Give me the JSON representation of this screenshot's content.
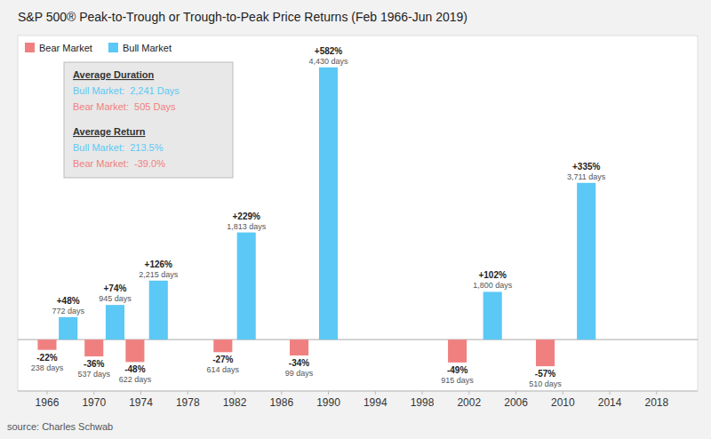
{
  "chart_data": {
    "type": "bar",
    "title": "S&P 500® Peak-to-Trough or Trough-to-Peak Price Returns (Feb 1966-Jun 2019)",
    "source": "source: Charles Schwab",
    "x": [
      1966.0,
      1967.8,
      1970.0,
      1971.8,
      1973.5,
      1975.5,
      1981.0,
      1983.0,
      1987.5,
      1990.0,
      2001.0,
      2004.0,
      2008.5,
      2012.0
    ],
    "series": [
      {
        "name": "Bear Market",
        "color": "#F08080",
        "values": [
          -22,
          null,
          -36,
          null,
          -48,
          null,
          -27,
          null,
          -34,
          null,
          -49,
          null,
          -57,
          null
        ],
        "value_labels": [
          "-22%",
          null,
          "-36%",
          null,
          "-48%",
          null,
          "-27%",
          null,
          "-34%",
          null,
          "-49%",
          null,
          "-57%",
          null
        ],
        "days": [
          238,
          null,
          537,
          null,
          622,
          null,
          614,
          null,
          99,
          null,
          915,
          null,
          510,
          null
        ],
        "days_labels": [
          "238 days",
          null,
          "537 days",
          null,
          "622 days",
          null,
          "614 days",
          null,
          "99 days",
          null,
          "915 days",
          null,
          "510 days",
          null
        ]
      },
      {
        "name": "Bull Market",
        "color": "#5BC8F5",
        "values": [
          null,
          48,
          null,
          74,
          null,
          126,
          null,
          229,
          null,
          582,
          null,
          102,
          null,
          335
        ],
        "value_labels": [
          null,
          "+48%",
          null,
          "+74%",
          null,
          "+126%",
          null,
          "+229%",
          null,
          "+582%",
          null,
          "+102%",
          null,
          "+335%"
        ],
        "days": [
          null,
          772,
          null,
          945,
          null,
          2215,
          null,
          1813,
          null,
          4430,
          null,
          1800,
          null,
          3711
        ],
        "days_labels": [
          null,
          "772 days",
          null,
          "945 days",
          null,
          "2,215 days",
          null,
          "1,813 days",
          null,
          "4,430 days",
          null,
          "1,800 days",
          null,
          "3,711 days"
        ]
      }
    ],
    "xlim": [
      1963.5,
      2021.5
    ],
    "xticks": [
      1966,
      1970,
      1974,
      1978,
      1982,
      1986,
      1990,
      1994,
      1998,
      2002,
      2006,
      2010,
      2014,
      2018
    ],
    "ylim": [
      -110,
      650
    ],
    "tick_labels": "x",
    "grid": false,
    "legend": "upper left",
    "data_labels": true,
    "annotations": [
      {
        "text": "Average Duration"
      },
      {
        "text": "Bull Market:  2,241 Days",
        "color": "#5BC8F5"
      },
      {
        "text": "Bear Market:  505 Days",
        "color": "#F08080"
      },
      {
        "text": "Average Return"
      },
      {
        "text": "Bull Market:  213.5%",
        "color": "#5BC8F5"
      },
      {
        "text": "Bear Market:  -39.0%",
        "color": "#F08080"
      }
    ]
  }
}
